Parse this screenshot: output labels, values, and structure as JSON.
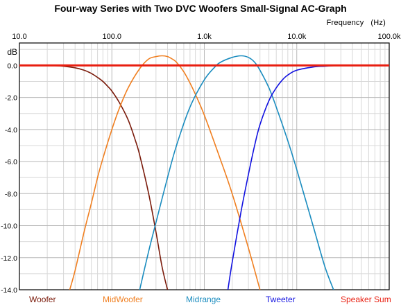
{
  "chart_data": {
    "type": "line",
    "title": "Four-way Series with Two DVC Woofers Small-Signal AC-Graph",
    "xlabel": "Frequency",
    "xunit": "(Hz)",
    "ylabel": "dB",
    "xscale": "log",
    "xlim": [
      10,
      100000
    ],
    "ylim": [
      -14,
      1.4
    ],
    "x_ticks": [
      "10.0",
      "100.0",
      "1.0k",
      "10.0k",
      "100.0k"
    ],
    "y_ticks": [
      "0.0",
      "-2.0",
      "-4.0",
      "-6.0",
      "-8.0",
      "-10.0",
      "-12.0",
      "-14.0"
    ],
    "grid": true,
    "legend_position": "bottom",
    "series": [
      {
        "name": "Woofer",
        "color": "#7a1a0a",
        "points": [
          [
            15,
            0
          ],
          [
            20,
            0
          ],
          [
            30,
            -0.05
          ],
          [
            40,
            -0.15
          ],
          [
            50,
            -0.3
          ],
          [
            60,
            -0.5
          ],
          [
            70,
            -0.75
          ],
          [
            80,
            -1.0
          ],
          [
            90,
            -1.3
          ],
          [
            100,
            -1.6
          ],
          [
            120,
            -2.3
          ],
          [
            150,
            -3.4
          ],
          [
            180,
            -4.7
          ],
          [
            200,
            -5.6
          ],
          [
            250,
            -8.0
          ],
          [
            300,
            -10.4
          ],
          [
            350,
            -12.6
          ],
          [
            400,
            -14.0
          ]
        ]
      },
      {
        "name": "MidWoofer",
        "color": "#f07f20",
        "points": [
          [
            35,
            -14
          ],
          [
            40,
            -12.8
          ],
          [
            50,
            -10.4
          ],
          [
            60,
            -8.6
          ],
          [
            70,
            -7.0
          ],
          [
            80,
            -5.8
          ],
          [
            100,
            -4.0
          ],
          [
            120,
            -2.7
          ],
          [
            150,
            -1.4
          ],
          [
            200,
            -0.2
          ],
          [
            250,
            0.4
          ],
          [
            300,
            0.55
          ],
          [
            350,
            0.6
          ],
          [
            400,
            0.55
          ],
          [
            450,
            0.4
          ],
          [
            500,
            0.2
          ],
          [
            600,
            -0.4
          ],
          [
            700,
            -1.1
          ],
          [
            800,
            -1.8
          ],
          [
            1000,
            -3.1
          ],
          [
            1500,
            -5.9
          ],
          [
            2000,
            -8.0
          ],
          [
            3000,
            -11.4
          ],
          [
            4000,
            -14.0
          ]
        ]
      },
      {
        "name": "Midrange",
        "color": "#1a8cbf",
        "points": [
          [
            200,
            -14
          ],
          [
            250,
            -11.6
          ],
          [
            300,
            -9.8
          ],
          [
            400,
            -7.0
          ],
          [
            500,
            -5.0
          ],
          [
            700,
            -2.6
          ],
          [
            1000,
            -0.9
          ],
          [
            1300,
            -0.1
          ],
          [
            1500,
            0.2
          ],
          [
            2000,
            0.5
          ],
          [
            2500,
            0.6
          ],
          [
            3000,
            0.5
          ],
          [
            3500,
            0.2
          ],
          [
            4000,
            -0.3
          ],
          [
            5000,
            -1.4
          ],
          [
            6000,
            -2.6
          ],
          [
            8000,
            -4.7
          ],
          [
            10000,
            -6.5
          ],
          [
            15000,
            -10.0
          ],
          [
            20000,
            -12.5
          ],
          [
            25000,
            -14.0
          ]
        ]
      },
      {
        "name": "Tweeter",
        "color": "#1010e0",
        "points": [
          [
            1800,
            -14
          ],
          [
            2000,
            -12.3
          ],
          [
            2500,
            -9.1
          ],
          [
            3000,
            -6.8
          ],
          [
            3500,
            -5.0
          ],
          [
            4000,
            -3.7
          ],
          [
            5000,
            -2.2
          ],
          [
            6000,
            -1.4
          ],
          [
            7000,
            -0.9
          ],
          [
            8000,
            -0.6
          ],
          [
            10000,
            -0.3
          ],
          [
            15000,
            -0.1
          ],
          [
            20000,
            -0.05
          ],
          [
            30000,
            0
          ],
          [
            50000,
            0
          ],
          [
            60000,
            0
          ]
        ]
      },
      {
        "name": "Speaker Sum",
        "color": "#e81e10",
        "points": [
          [
            10,
            0
          ],
          [
            100000,
            0
          ]
        ]
      }
    ]
  }
}
